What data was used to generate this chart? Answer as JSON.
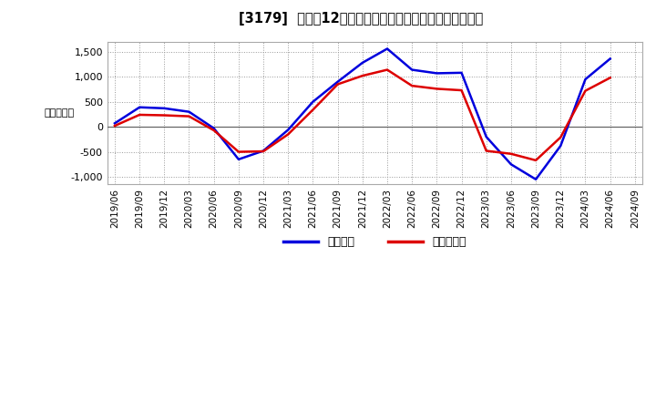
{
  "title": "[3179]  利益だ12か月移動合計の対前年同期増減額の推移",
  "ylabel": "（百万円）",
  "background_color": "#ffffff",
  "plot_bg_color": "#ffffff",
  "grid_color": "#999999",
  "x_labels": [
    "2019/06",
    "2019/09",
    "2019/12",
    "2020/03",
    "2020/06",
    "2020/09",
    "2020/12",
    "2021/03",
    "2021/06",
    "2021/09",
    "2021/12",
    "2022/03",
    "2022/06",
    "2022/09",
    "2022/12",
    "2023/03",
    "2023/06",
    "2023/09",
    "2023/12",
    "2024/03",
    "2024/06",
    "2024/09"
  ],
  "blue_data": {
    "label": "経常利益",
    "color": "#0000dd",
    "values": [
      70,
      390,
      370,
      300,
      -30,
      -650,
      -480,
      -60,
      500,
      900,
      1280,
      1560,
      1140,
      1070,
      1080,
      -200,
      -750,
      -1050,
      -380,
      950,
      1360,
      null
    ]
  },
  "red_data": {
    "label": "当期純利益",
    "color": "#dd0000",
    "values": [
      20,
      240,
      230,
      210,
      -70,
      -500,
      -490,
      -150,
      340,
      850,
      1020,
      1140,
      820,
      760,
      730,
      -480,
      -540,
      -670,
      -210,
      720,
      980,
      null
    ]
  },
  "ylim": [
    -1150,
    1700
  ],
  "yticks": [
    -1000,
    -500,
    0,
    500,
    1000,
    1500
  ],
  "legend_labels": [
    "経常利益",
    "当期純利益"
  ],
  "legend_colors": [
    "#0000dd",
    "#dd0000"
  ]
}
